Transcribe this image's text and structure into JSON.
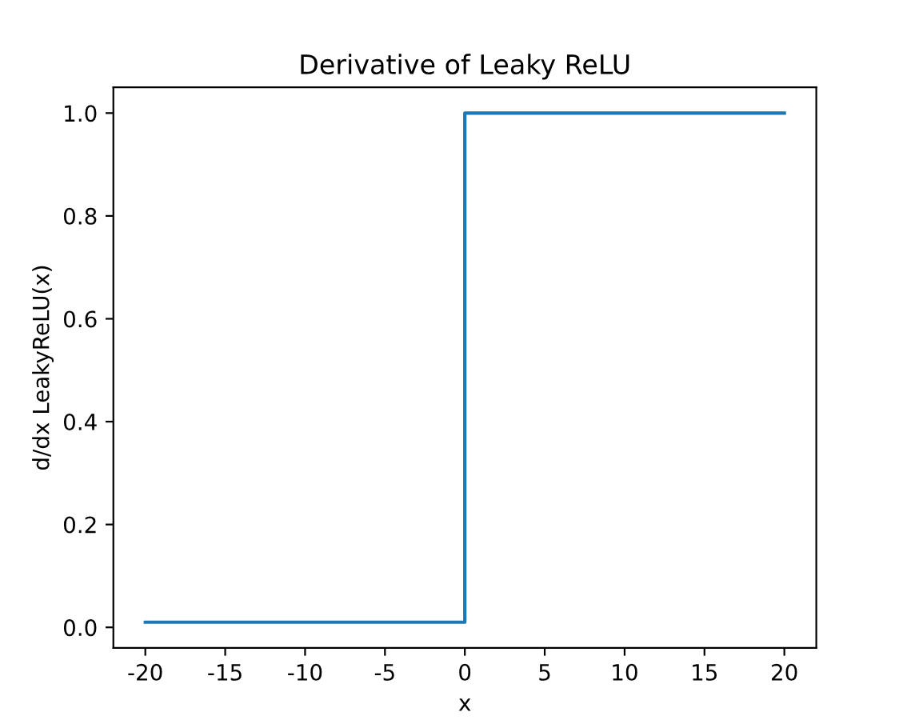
{
  "chart_data": {
    "type": "line",
    "title": "Derivative of Leaky ReLU",
    "xlabel": "x",
    "ylabel": "d/dx LeakyReLU(x)",
    "x": [
      -20,
      0,
      0,
      20
    ],
    "series": [
      {
        "color": "#1f77b4",
        "values": [
          0.01,
          0.01,
          1,
          1
        ]
      }
    ],
    "xlim": [
      -22,
      22
    ],
    "ylim": [
      -0.04,
      1.05
    ],
    "xticks": [
      -20,
      -15,
      -10,
      -5,
      0,
      5,
      10,
      15,
      20
    ],
    "yticks": [
      {
        "value": 0,
        "label": "0.0"
      },
      {
        "value": 0.2,
        "label": "0.2"
      },
      {
        "value": 0.4,
        "label": "0.4"
      },
      {
        "value": 0.6,
        "label": "0.6"
      },
      {
        "value": 0.8,
        "label": "0.8"
      },
      {
        "value": 1,
        "label": "1.0"
      }
    ],
    "grid": false,
    "legend": false,
    "marker": "none",
    "line_style": "solid"
  }
}
